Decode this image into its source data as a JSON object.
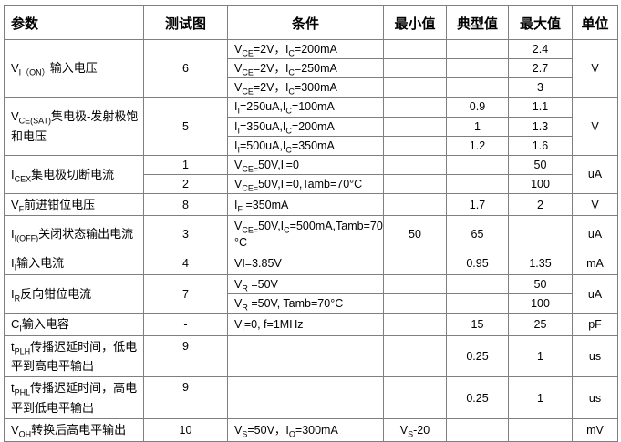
{
  "table": {
    "headers": {
      "param": "参数",
      "fig": "测试图",
      "cond": "条件",
      "min": "最小值",
      "typ": "典型值",
      "max": "最大值",
      "unit": "单位"
    },
    "border_color": "#7f7f7f",
    "groups": [
      {
        "param": "V_{I（ON）}输入电压",
        "fig": "6",
        "unit": "V",
        "rows": [
          {
            "cond": "V_{CE}=2V，I_{C}=200mA",
            "min": "",
            "typ": "",
            "max": "2.4"
          },
          {
            "cond": "V_{CE}=2V，I_{C}=250mA",
            "min": "",
            "typ": "",
            "max": "2.7"
          },
          {
            "cond": "V_{CE}=2V，I_{C}=300mA",
            "min": "",
            "typ": "",
            "max": "3"
          }
        ]
      },
      {
        "param": "V_{CE(SAT)}集电极-发射极饱和电压",
        "fig": "5",
        "unit": "V",
        "rows": [
          {
            "cond": "I_{I}=250uA,I_{C}=100mA",
            "min": "",
            "typ": "0.9",
            "max": "1.1"
          },
          {
            "cond": "I_{I}=350uA,I_{C}=200mA",
            "min": "",
            "typ": "1",
            "max": "1.3"
          },
          {
            "cond": "I_{I}=500uA,I_{C}=350mA",
            "min": "",
            "typ": "1.2",
            "max": "1.6"
          }
        ]
      },
      {
        "param": "I_{CEX}集电极切断电流",
        "unit": "uA",
        "rows": [
          {
            "fig": "1",
            "cond": "V_{CE=}50V,I_{I}=0",
            "min": "",
            "typ": "",
            "max": "50"
          },
          {
            "fig": "2",
            "cond": "V_{CE=}50V,I_{I}=0,Tamb=70°C",
            "min": "",
            "typ": "",
            "max": "100"
          }
        ]
      },
      {
        "param": "V_{F}前进钳位电压",
        "fig": "8",
        "unit": "V",
        "rows": [
          {
            "cond": "I_{F} =350mA",
            "min": "",
            "typ": "1.7",
            "max": "2"
          }
        ]
      },
      {
        "param": "I_{I(OFF)}关闭状态输出电流",
        "fig": "3",
        "unit": "uA",
        "rows": [
          {
            "cond": "V_{CE=}50V,I_{C}=500mA,Tamb=70\n°C",
            "min": "50",
            "typ": "65",
            "max": ""
          }
        ]
      },
      {
        "param": "I_{I}输入电流",
        "fig": "4",
        "unit": "mA",
        "rows": [
          {
            "cond": "VI=3.85V",
            "min": "",
            "typ": "0.95",
            "max": "1.35"
          }
        ]
      },
      {
        "param": "I_{R}反向钳位电流",
        "fig": "7",
        "unit": "uA",
        "rows": [
          {
            "cond": "V_{R} =50V",
            "min": "",
            "typ": "",
            "max": "50"
          },
          {
            "cond": "V_{R} =50V, Tamb=70°C",
            "min": "",
            "typ": "",
            "max": "100"
          }
        ]
      },
      {
        "param": "C_{I}输入电容",
        "fig": "-",
        "unit": "pF",
        "rows": [
          {
            "cond": "V_{I}=0, f=1MHz",
            "min": "",
            "typ": "15",
            "max": "25"
          }
        ]
      },
      {
        "param": "t_{PLH}传播迟延时间，低电平到高电平输出",
        "fig": "9",
        "unit": "us",
        "rows": [
          {
            "cond": "",
            "min": "",
            "typ": "0.25",
            "max": "1"
          }
        ]
      },
      {
        "param": "t_{PHL}传播迟延时间，高电平到低电平输出",
        "fig": "9",
        "unit": "us",
        "rows": [
          {
            "cond": "",
            "min": "",
            "typ": "0.25",
            "max": "1"
          }
        ]
      },
      {
        "param": "V_{OH}转换后高电平输出",
        "fig": "10",
        "unit": "mV",
        "rows": [
          {
            "cond": "V_{S}=50V，I_{O}=300mA",
            "min": "V_{S}-20",
            "typ": "",
            "max": ""
          }
        ]
      }
    ]
  }
}
